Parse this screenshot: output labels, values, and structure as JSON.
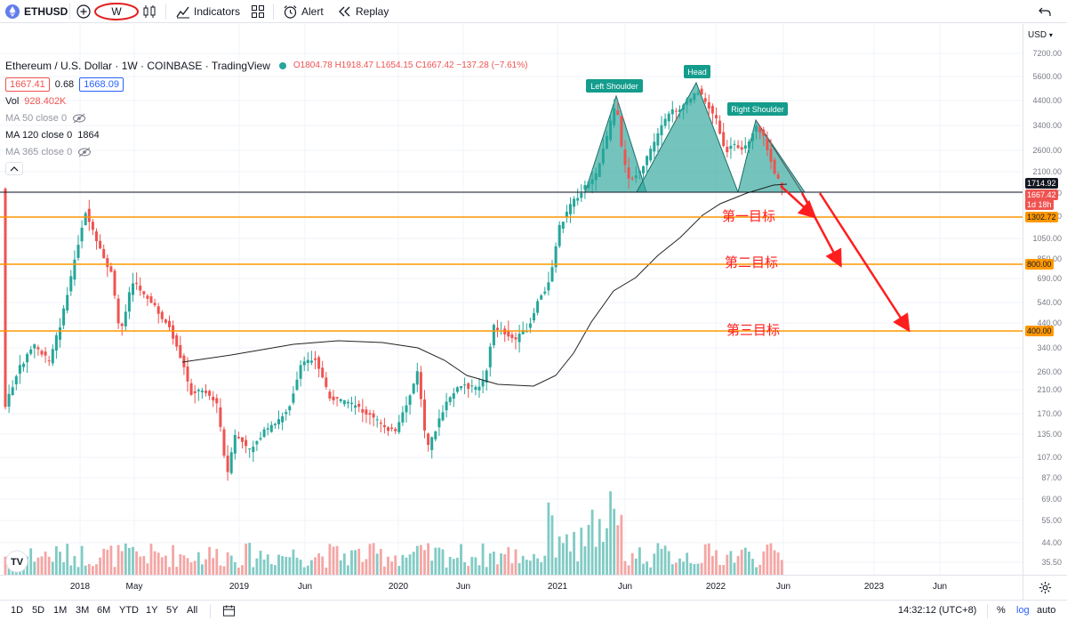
{
  "toolbar": {
    "symbol": "ETHUSD",
    "interval": "W",
    "indicators_label": "Indicators",
    "alert_label": "Alert",
    "replay_label": "Replay"
  },
  "legend": {
    "title": "Ethereum / U.S. Dollar · 1W · COINBASE · TradingView",
    "ohlc": "O1804.78 H1918.47 L1654.15 C1667.42 −137.28 (−7.61%)",
    "bid": "1667.41",
    "spread": "0.68",
    "ask": "1668.09",
    "vol_label": "Vol",
    "vol_value": "928.402K",
    "ma50": "MA 50 close 0",
    "ma120_label": "MA 120 close 0",
    "ma120_value": "1864",
    "ma365": "MA 365 close 0"
  },
  "annotations": {
    "left_shoulder": "Left Shoulder",
    "head": "Head",
    "right_shoulder": "Right Shoulder",
    "target1": "第一目标",
    "target2": "第二目标",
    "target3": "第三目标"
  },
  "price_axis": {
    "currency": "USD",
    "ticks": [
      "7200.00",
      "5600.00",
      "4400.00",
      "3400.00",
      "2600.00",
      "2100.00",
      "1650.00",
      "1300.00",
      "1050.00",
      "850.00",
      "690.00",
      "540.00",
      "440.00",
      "340.00",
      "260.00",
      "210.00",
      "170.00",
      "135.00",
      "107.00",
      "87.00",
      "69.00",
      "55.00",
      "44.00",
      "35.50"
    ],
    "labels": {
      "neckline": "1714.92",
      "current": "1667.42",
      "countdown": "1d 18h",
      "target1": "1302.72",
      "target2": "800.00",
      "target3": "400.00"
    }
  },
  "time_axis": {
    "ticks": [
      "2018",
      "May",
      "2019",
      "Jun",
      "2020",
      "Jun",
      "2021",
      "Jun",
      "2022",
      "Jun",
      "2023",
      "Jun"
    ]
  },
  "bottombar": {
    "ranges": [
      "1D",
      "5D",
      "1M",
      "3M",
      "6M",
      "YTD",
      "1Y",
      "5Y",
      "All"
    ],
    "clock": "14:32:12 (UTC+8)",
    "percent": "%",
    "log": "log",
    "auto": "auto"
  },
  "colors": {
    "up": "#26a69a",
    "down": "#ef5350",
    "vol_up": "#80cbc4",
    "vol_down": "#f4a6a4",
    "pattern_fill": "#2aa59a",
    "target_line": "#ff9800",
    "arrow": "#ff1e1e",
    "ma_line": "#222222"
  }
}
